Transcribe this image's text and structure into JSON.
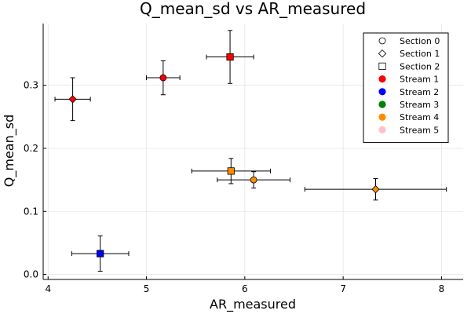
{
  "chart_data": {
    "type": "scatter",
    "title": "Q_mean_sd vs AR_measured",
    "xlabel": "AR_measured",
    "ylabel": "Q_mean_sd",
    "xlim": [
      3.95,
      8.22
    ],
    "ylim": [
      -0.008,
      0.398
    ],
    "xticks": [
      4,
      5,
      6,
      7,
      8
    ],
    "yticks": [
      0.0,
      0.1,
      0.2,
      0.3
    ],
    "xtick_labels": [
      "4",
      "5",
      "6",
      "7",
      "8"
    ],
    "ytick_labels": [
      "0.0",
      "0.1",
      "0.2",
      "0.3"
    ],
    "grid": true,
    "legend_position": "top-right",
    "legend": [
      {
        "label": "Section 0",
        "kind": "shape",
        "shape": "circle"
      },
      {
        "label": "Section 1",
        "kind": "shape",
        "shape": "diamond"
      },
      {
        "label": "Section 2",
        "kind": "shape",
        "shape": "square"
      },
      {
        "label": "Stream 1",
        "kind": "color",
        "color": "#ff0000"
      },
      {
        "label": "Stream 2",
        "kind": "color",
        "color": "#0000ff"
      },
      {
        "label": "Stream 3",
        "kind": "color",
        "color": "#008000"
      },
      {
        "label": "Stream 4",
        "kind": "color",
        "color": "#ff8c00"
      },
      {
        "label": "Stream 5",
        "kind": "color",
        "color": "#ffc0cb"
      }
    ],
    "points": [
      {
        "x": 4.25,
        "y": 0.278,
        "xerr": 0.18,
        "yerr": 0.034,
        "shape": "diamond",
        "color": "#ff0000"
      },
      {
        "x": 5.17,
        "y": 0.312,
        "xerr": 0.17,
        "yerr": 0.027,
        "shape": "circle",
        "color": "#ff0000"
      },
      {
        "x": 5.85,
        "y": 0.345,
        "xerr": 0.24,
        "yerr": 0.042,
        "shape": "square",
        "color": "#ff0000"
      },
      {
        "x": 4.53,
        "y": 0.033,
        "xerr": 0.29,
        "yerr": 0.028,
        "shape": "square",
        "color": "#0000ff"
      },
      {
        "x": 5.86,
        "y": 0.164,
        "xerr": 0.4,
        "yerr": 0.02,
        "shape": "square",
        "color": "#ff8c00"
      },
      {
        "x": 6.09,
        "y": 0.15,
        "xerr": 0.37,
        "yerr": 0.013,
        "shape": "circle",
        "color": "#ff8c00"
      },
      {
        "x": 7.33,
        "y": 0.135,
        "xerr": 0.72,
        "yerr": 0.017,
        "shape": "diamond",
        "color": "#ff8c00"
      }
    ]
  }
}
